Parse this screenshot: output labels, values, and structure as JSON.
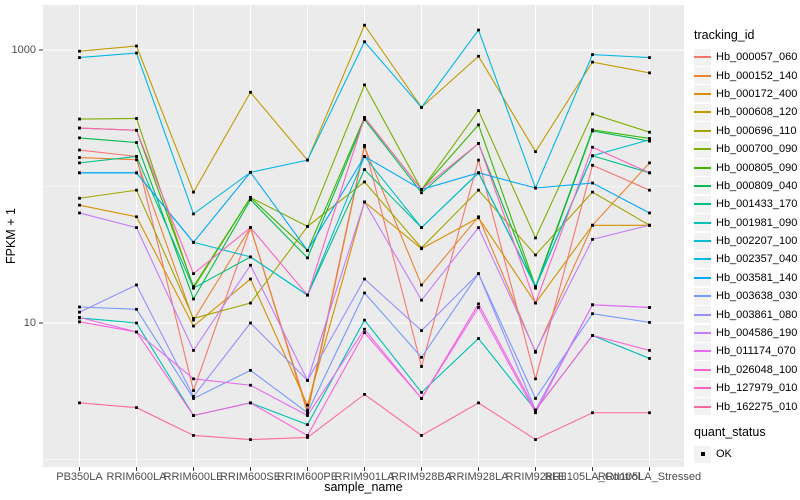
{
  "chart_data": {
    "type": "line",
    "xlabel": "sample_name",
    "ylabel": "FPKM + 1",
    "y_scale": "log10",
    "ylim": [
      0.9,
      2100
    ],
    "grid": true,
    "legend_position": "right",
    "y_axis_ticks": [
      {
        "label": "1000",
        "value": 1000
      },
      {
        "label": "10",
        "value": 10
      }
    ],
    "y_minor_gridlines": [
      100,
      1
    ],
    "categories": [
      "PB350LA",
      "RRIM600LA",
      "RRIM600LE",
      "RRIM600SE",
      "RRIM600PE",
      "RRIM901LA",
      "RRIM928BA",
      "RRIM928LA",
      "RRIM928LE",
      "RRII105LA_Control",
      "RRII105LA_Stressed"
    ],
    "series": [
      {
        "name": "Hb_000057_060",
        "color": "#F8766D",
        "values": [
          185,
          166,
          3.2,
          50,
          2.3,
          200,
          4.8,
          156,
          3.9,
          143,
          94
        ]
      },
      {
        "name": "Hb_000152_140",
        "color": "#EA8331",
        "values": [
          163,
          157,
          10.5,
          50,
          2.2,
          195,
          19,
          60,
          6.1,
          52,
          149
        ]
      },
      {
        "name": "Hb_000172_400",
        "color": "#D89000",
        "values": [
          73,
          60,
          9.5,
          21,
          2.5,
          77,
          35,
          59,
          14,
          52,
          52
        ]
      },
      {
        "name": "Hb_000608_120",
        "color": "#C09B00",
        "values": [
          980,
          1070,
          91,
          490,
          156,
          1520,
          380,
          900,
          180,
          815,
          680
        ]
      },
      {
        "name": "Hb_000696_110",
        "color": "#A3A500",
        "values": [
          82,
          94,
          10.8,
          14,
          51,
          108,
          35.5,
          94,
          31.5,
          91,
          52
        ]
      },
      {
        "name": "Hb_000700_090",
        "color": "#7CAE00",
        "values": [
          312,
          315,
          18,
          83,
          51,
          555,
          95,
          360,
          42,
          340,
          250
        ]
      },
      {
        "name": "Hb_000805_090",
        "color": "#39B600",
        "values": [
          268,
          258,
          18.5,
          83,
          34,
          320,
          95,
          283,
          18.5,
          260,
          225
        ]
      },
      {
        "name": "Hb_000809_040",
        "color": "#00BB4E",
        "values": [
          227,
          210,
          15,
          80,
          30,
          310,
          90,
          207,
          18,
          255,
          215
        ]
      },
      {
        "name": "Hb_001433_170",
        "color": "#00C087",
        "values": [
          149,
          166,
          18,
          30.5,
          16,
          133,
          50,
          126,
          18.3,
          168,
          126
        ]
      },
      {
        "name": "Hb_001981_090",
        "color": "#00C0B2",
        "values": [
          10.9,
          10,
          2.1,
          2.6,
          1.8,
          10.5,
          3.1,
          7.7,
          2.3,
          8.1,
          5.5
        ]
      },
      {
        "name": "Hb_002207_100",
        "color": "#00BDD2",
        "values": [
          126,
          126,
          39,
          30.5,
          16,
          166,
          50,
          126,
          18.5,
          168,
          220
        ]
      },
      {
        "name": "Hb_002357_040",
        "color": "#00B8E5",
        "values": [
          880,
          950,
          63,
          127,
          156,
          1150,
          380,
          1400,
          97.5,
          925,
          880
        ]
      },
      {
        "name": "Hb_003581_140",
        "color": "#00A9FF",
        "values": [
          126,
          126,
          39,
          127,
          34,
          166,
          95,
          126,
          97.5,
          106,
          64
        ]
      },
      {
        "name": "Hb_003638_030",
        "color": "#7499FF",
        "values": [
          13.1,
          12.6,
          2.8,
          4.5,
          2.2,
          16.6,
          5.6,
          23,
          2.8,
          11.7,
          10.1
        ]
      },
      {
        "name": "Hb_003861_080",
        "color": "#9590FF",
        "values": [
          12,
          19,
          2.9,
          10,
          3.8,
          21,
          8.8,
          23,
          2.3,
          13.6,
          13
        ]
      },
      {
        "name": "Hb_004586_190",
        "color": "#C27CFF",
        "values": [
          64,
          50,
          6.3,
          26.5,
          3.8,
          77,
          14.7,
          50,
          6.2,
          41,
          52
        ]
      },
      {
        "name": "Hb_011174_070",
        "color": "#E76BF3",
        "values": [
          11,
          8.6,
          3.9,
          3.5,
          2.1,
          9,
          2.8,
          13,
          2.2,
          13.6,
          13
        ]
      },
      {
        "name": "Hb_026048_100",
        "color": "#FA62DB",
        "values": [
          10.2,
          8.6,
          2.1,
          2.6,
          1.5,
          8.5,
          2.8,
          13.8,
          2.3,
          8.1,
          6.3
        ]
      },
      {
        "name": "Hb_127979_010",
        "color": "#FF62BC",
        "values": [
          268,
          258,
          23,
          50,
          16,
          320,
          95,
          207,
          14,
          194,
          126
        ]
      },
      {
        "name": "Hb_162275_010",
        "color": "#FF6A98",
        "values": [
          2.6,
          2.4,
          1.5,
          1.4,
          1.45,
          3.0,
          1.5,
          2.6,
          1.4,
          2.2,
          2.2
        ]
      }
    ]
  },
  "legend": {
    "tracking_title": "tracking_id",
    "quant_title": "quant_status",
    "quant_items": [
      {
        "label": "OK",
        "shape": "filled-square",
        "color": "#000000"
      }
    ]
  },
  "style_colors": {
    "panel_bg": "#EBEBEB",
    "gridline": "#FFFFFF",
    "point_color": "#000000",
    "tick_color": "#333333",
    "tick_label_color": "#4D4D4D",
    "legend_key_bg": "#F2F2F2"
  }
}
